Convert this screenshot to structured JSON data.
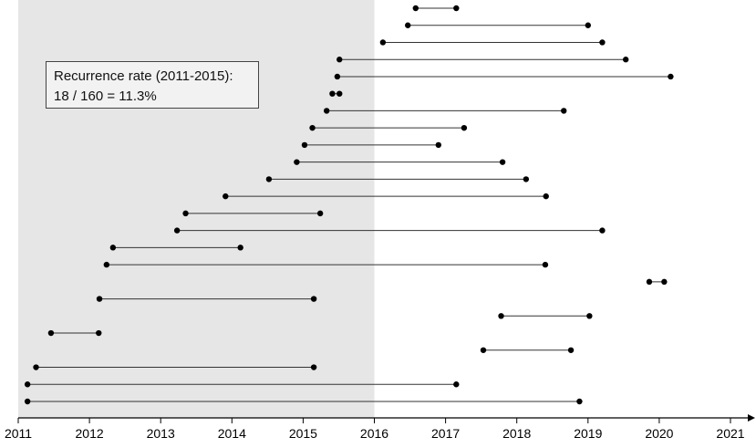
{
  "chart_data": {
    "type": "dumbbell",
    "annotation": {
      "line1": "Recurrence rate (2011-2015):",
      "line2": "18 / 160 = 11.3%"
    },
    "shaded_region": {
      "from": 2011,
      "to": 2016,
      "color": "#e6e6e6"
    },
    "xlim": [
      2011,
      2021.3
    ],
    "x_ticks": [
      2011,
      2012,
      2013,
      2014,
      2015,
      2016,
      2017,
      2018,
      2019,
      2020,
      2021
    ],
    "x_tick_labels": [
      "2011",
      "2012",
      "2013",
      "2014",
      "2015",
      "2016",
      "2017",
      "2018",
      "2019",
      "2020",
      "2021"
    ],
    "segments": [
      {
        "start": 2016.58,
        "end": 2017.15
      },
      {
        "start": 2016.47,
        "end": 2019.0
      },
      {
        "start": 2016.12,
        "end": 2019.2
      },
      {
        "start": 2015.51,
        "end": 2019.53
      },
      {
        "start": 2015.48,
        "end": 2020.16
      },
      {
        "start": 2015.41,
        "end": 2015.51
      },
      {
        "start": 2015.33,
        "end": 2018.66
      },
      {
        "start": 2015.13,
        "end": 2017.26
      },
      {
        "start": 2015.02,
        "end": 2016.9
      },
      {
        "start": 2014.91,
        "end": 2017.8
      },
      {
        "start": 2014.52,
        "end": 2018.13
      },
      {
        "start": 2013.91,
        "end": 2018.41
      },
      {
        "start": 2013.35,
        "end": 2015.24
      },
      {
        "start": 2013.23,
        "end": 2019.2
      },
      {
        "start": 2012.33,
        "end": 2014.12
      },
      {
        "start": 2012.24,
        "end": 2018.4
      },
      {
        "start": 2019.86,
        "end": 2020.07
      },
      {
        "start": 2012.14,
        "end": 2015.15
      },
      {
        "start": 2017.78,
        "end": 2019.02
      },
      {
        "start": 2011.46,
        "end": 2012.13
      },
      {
        "start": 2017.53,
        "end": 2018.76
      },
      {
        "start": 2011.25,
        "end": 2015.15
      },
      {
        "start": 2011.13,
        "end": 2017.15
      },
      {
        "start": 2011.13,
        "end": 2018.88
      }
    ]
  }
}
